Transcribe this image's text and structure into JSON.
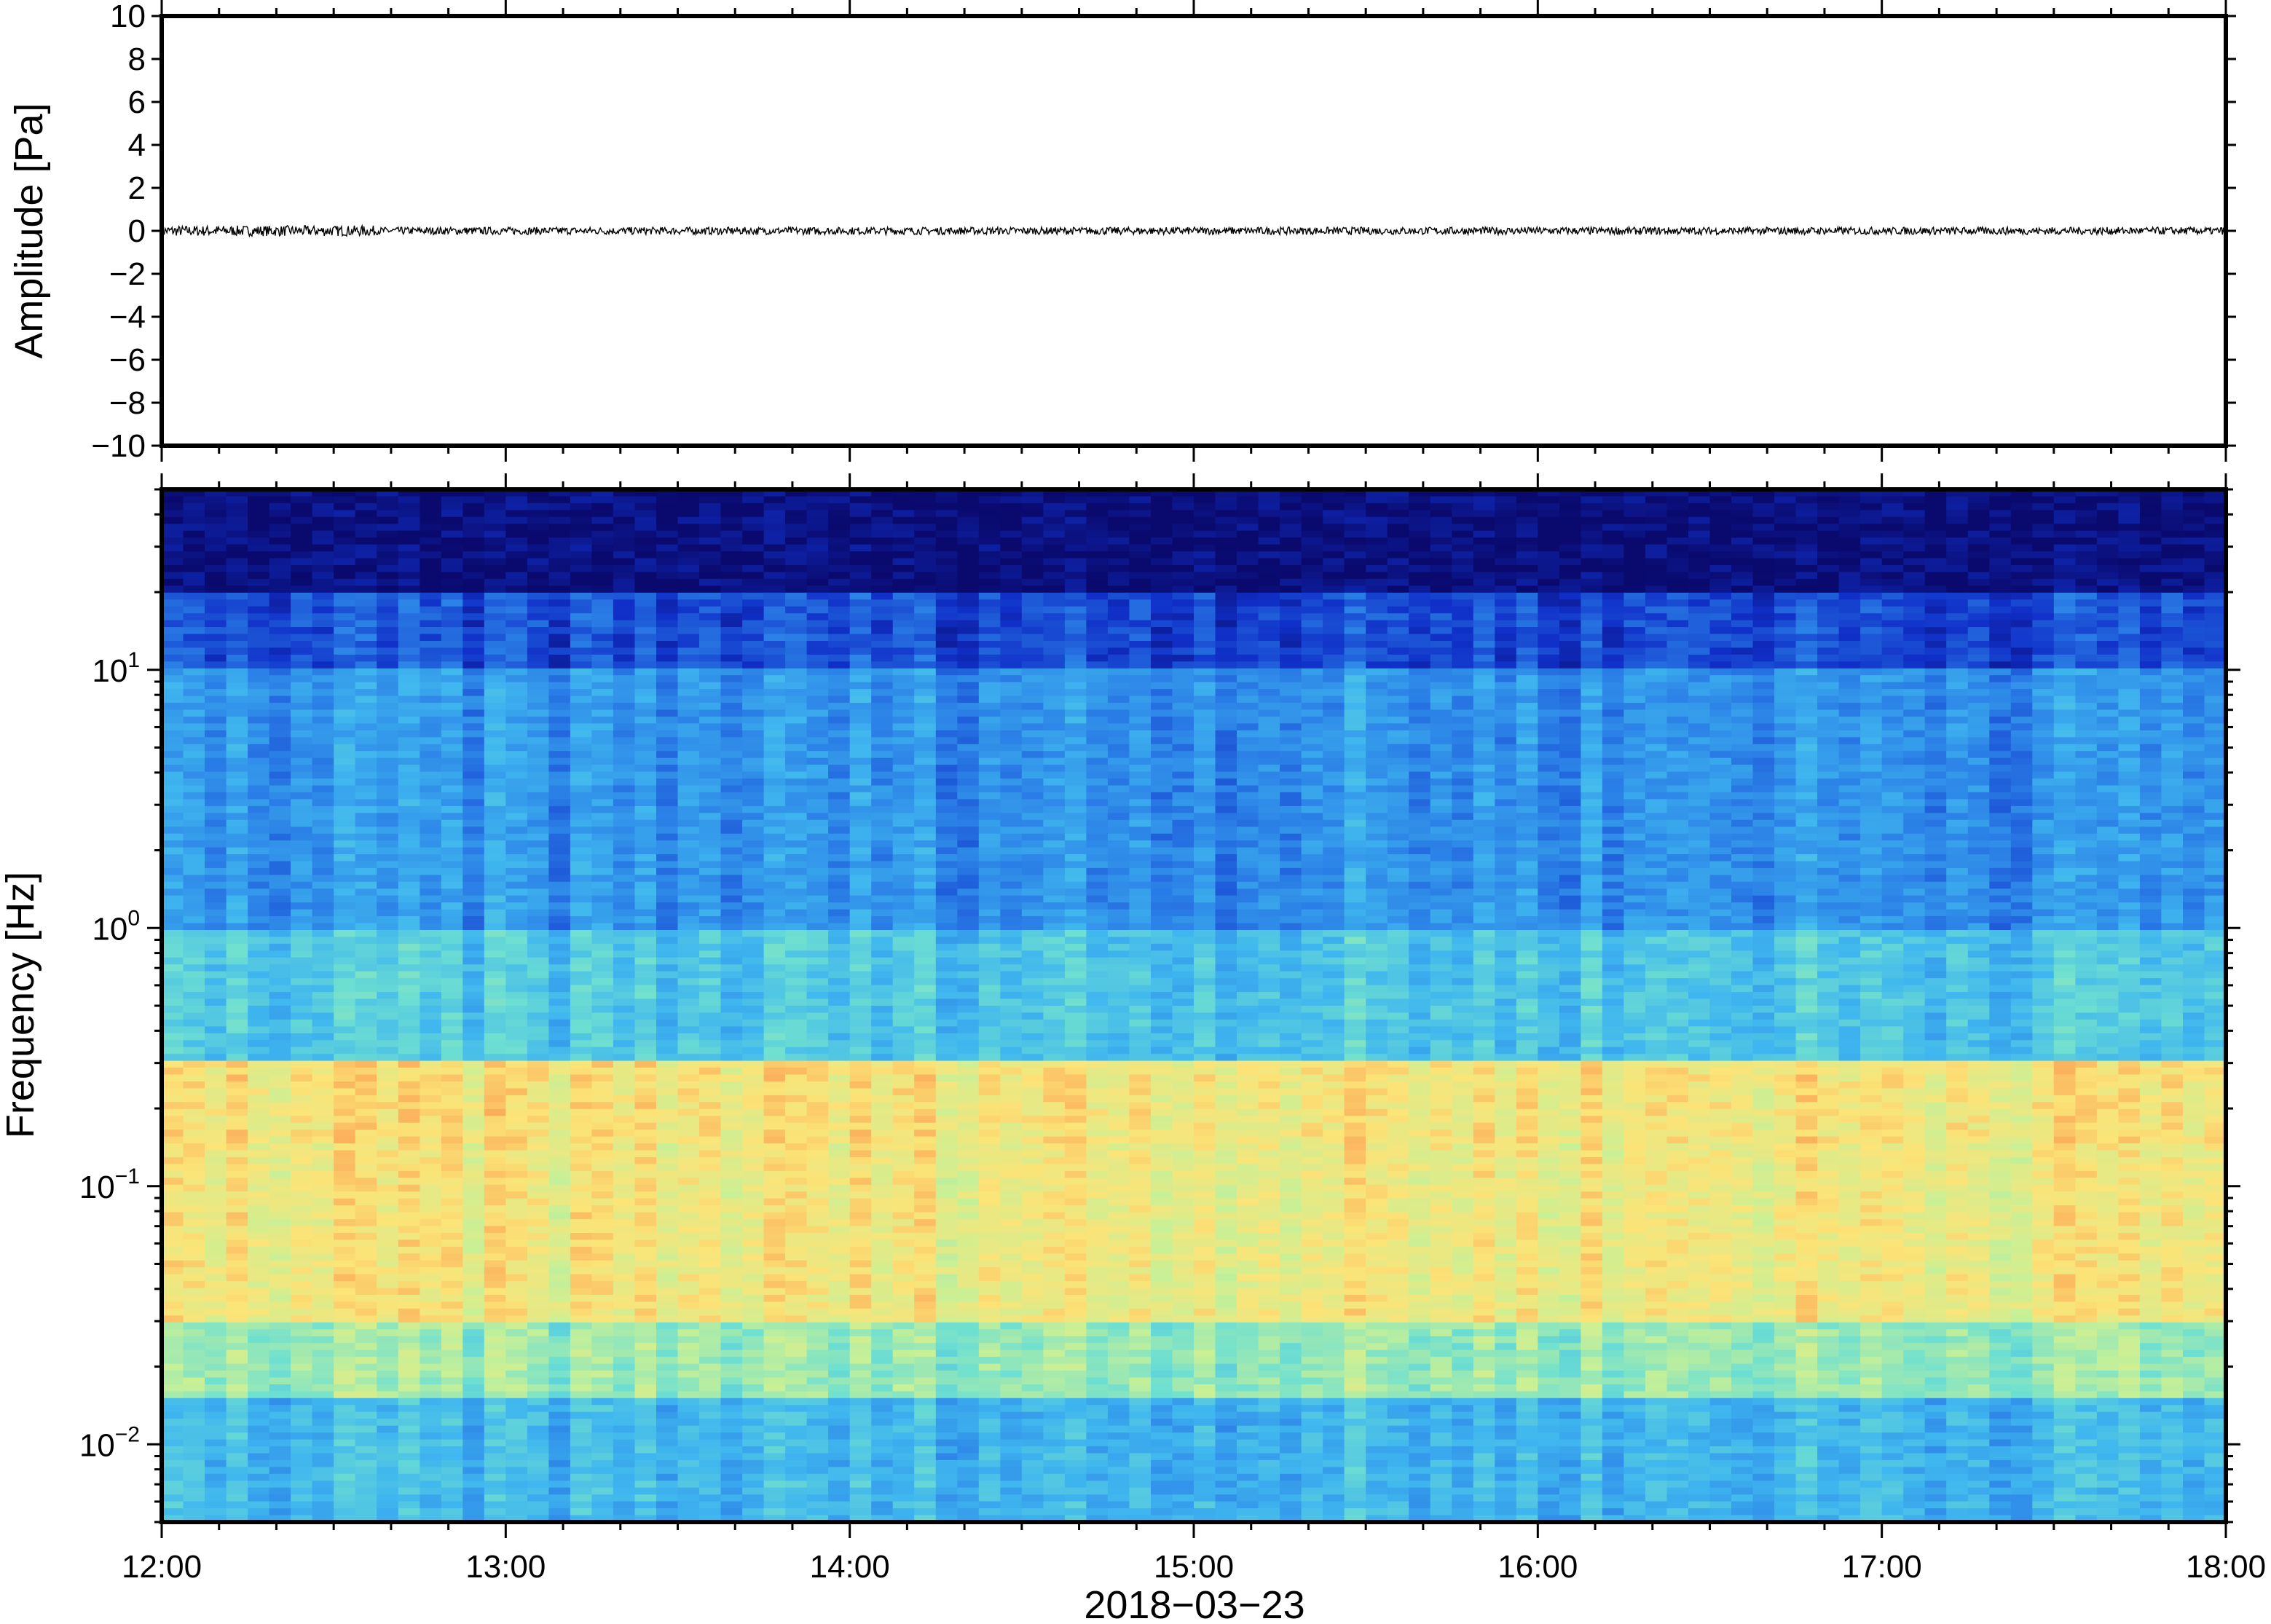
{
  "chart_data": [
    {
      "type": "line",
      "ylabel": "Amplitude [Pa]",
      "ylim": [
        -10,
        10
      ],
      "yticks": [
        10,
        8,
        6,
        4,
        2,
        0,
        -2,
        -4,
        -6,
        -8,
        -10
      ],
      "ytick_labels": [
        "10",
        "8",
        "6",
        "4",
        "2",
        "0",
        "−2",
        "−4",
        "−6",
        "−8",
        "−10"
      ],
      "xlim": [
        "12:00",
        "18:00"
      ],
      "series": [
        {
          "x": [
            "12:00",
            "13:00",
            "14:00",
            "15:00",
            "16:00",
            "17:00",
            "18:00"
          ],
          "y": [
            0,
            0,
            0,
            0,
            0,
            0,
            0
          ],
          "noise_amplitude_pa": 0.35
        }
      ],
      "line_color": "#000000",
      "grid": false
    },
    {
      "type": "heatmap",
      "ylabel": "Frequency [Hz]",
      "yscale": "log",
      "ylim": [
        0.005,
        50
      ],
      "yticks": [
        0.01,
        0.1,
        1,
        10
      ],
      "ytick_labels": [
        {
          "base": "10",
          "exp": "−2"
        },
        {
          "base": "10",
          "exp": "−1"
        },
        {
          "base": "10",
          "exp": "0"
        },
        {
          "base": "10",
          "exp": "1"
        }
      ],
      "x_ticks": [
        "12:00",
        "13:00",
        "14:00",
        "15:00",
        "16:00",
        "17:00",
        "18:00"
      ],
      "xlabel": "2018−03−23",
      "colormap": [
        "#0a0a6e",
        "#1030c8",
        "#2a7ee6",
        "#3fb6ef",
        "#6fe0d0",
        "#c8f096",
        "#fbe478",
        "#fb9c50",
        "#e8582e"
      ],
      "bands": [
        {
          "freq_min": 20,
          "freq_max": 50,
          "level": 0.02
        },
        {
          "freq_min": 10,
          "freq_max": 20,
          "level": 0.17
        },
        {
          "freq_min": 1,
          "freq_max": 10,
          "level": 0.3
        },
        {
          "freq_min": 0.3,
          "freq_max": 1,
          "level": 0.42
        },
        {
          "freq_min": 0.15,
          "freq_max": 0.3,
          "level": 0.74
        },
        {
          "freq_min": 0.03,
          "freq_max": 0.15,
          "level": 0.72
        },
        {
          "freq_min": 0.015,
          "freq_max": 0.03,
          "level": 0.56
        },
        {
          "freq_min": 0.005,
          "freq_max": 0.015,
          "level": 0.38
        }
      ],
      "grid": false
    }
  ]
}
